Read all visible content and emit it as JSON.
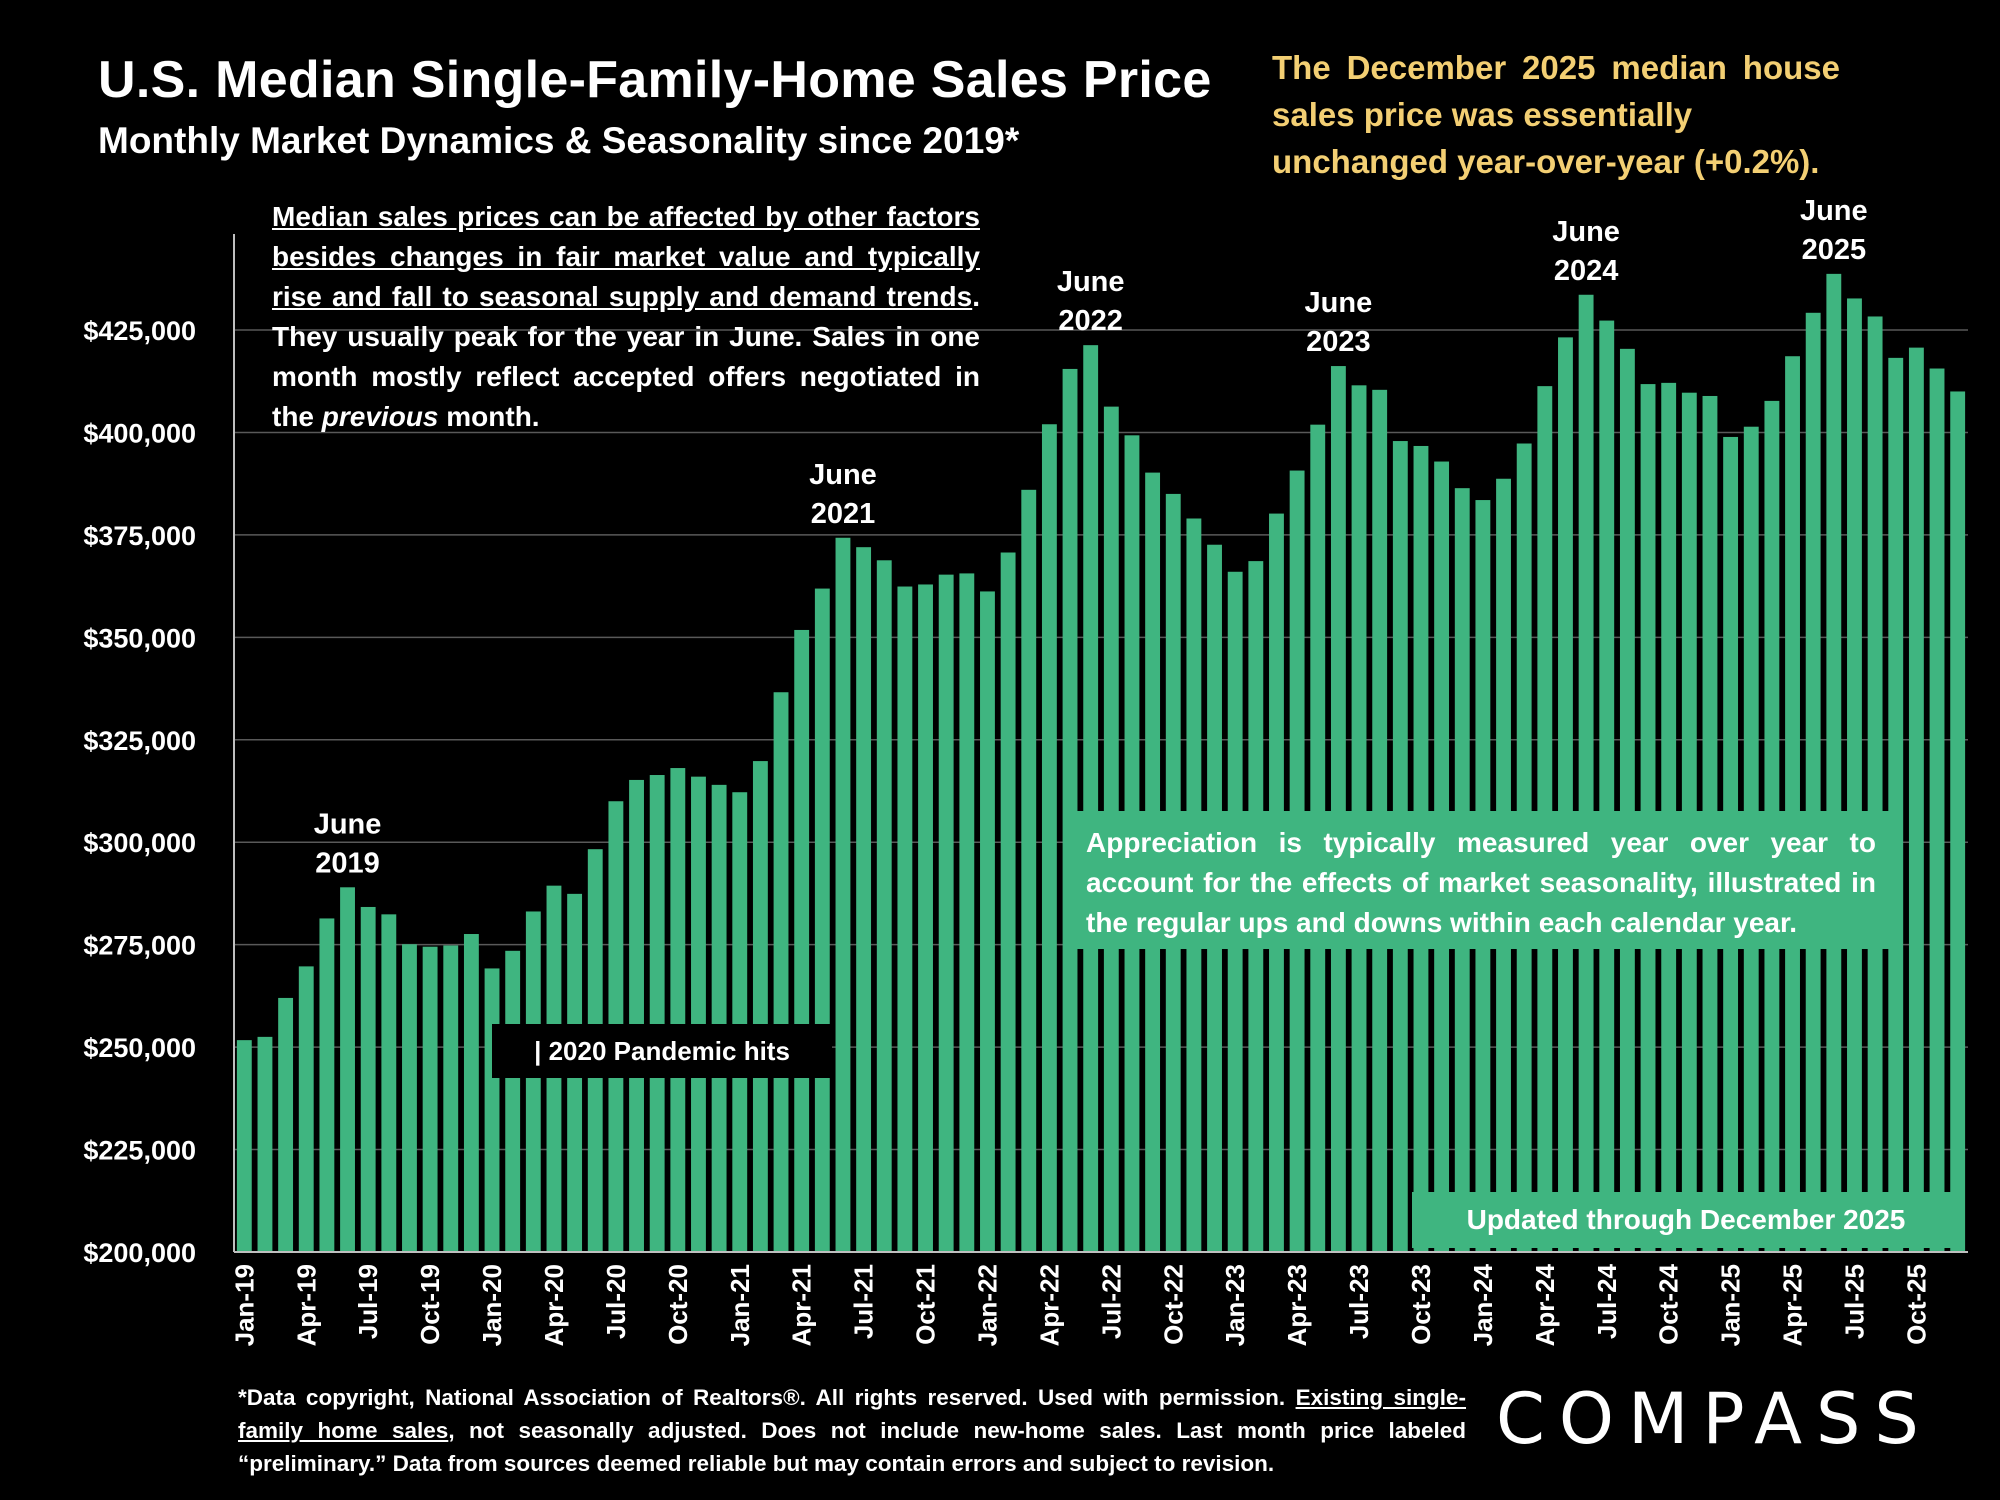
{
  "title": "U.S. Median Single-Family-Home Sales Price",
  "subtitle": "Monthly Market Dynamics & Seasonality since 2019*",
  "callout": {
    "line1": "The December  2025 median house sales price was essentially",
    "line2": "unchanged year-over-year (+0.2%)."
  },
  "note": {
    "underlined": "Median sales prices can be affected by other factors besides changes in fair market value and typically rise and fall to seasonal supply and demand trends",
    "after_underlined": ". They usually peak for the year in June. Sales in one month mostly reflect accepted offers negotiated in the ",
    "italic": "previous",
    "end": " month."
  },
  "appreciation_box": "Appreciation is typically measured year over year to account for the effects of market seasonality, illustrated in the regular ups and downs within each calendar year.",
  "updated_label": "Updated through December 2025",
  "pandemic_label": "| 2020 Pandemic hits",
  "footer": {
    "part1": "*Data copyright, National Association of Realtors®. All rights reserved. Used with permission. ",
    "link": "Existing single-family home sales",
    "part2": ", not seasonally adjusted. Does not include new-home sales. Last month price labeled “preliminary.” Data from sources deemed reliable but may contain errors and subject to revision."
  },
  "logo": "COMPASS",
  "colors": {
    "bar": "#3fb580",
    "callout": "#f3cf73",
    "background": "#000000"
  },
  "chart_data": {
    "type": "bar",
    "title": "U.S. Median Single-Family-Home Sales Price",
    "ylim": [
      200000,
      450000
    ],
    "yticks": [
      200000,
      225000,
      250000,
      275000,
      300000,
      325000,
      350000,
      375000,
      400000,
      425000
    ],
    "ytick_labels": [
      "$200,000",
      "$225,000",
      "$250,000",
      "$275,000",
      "$300,000",
      "$325,000",
      "$350,000",
      "$375,000",
      "$400,000",
      "$425,000"
    ],
    "grid": true,
    "xtick_labels": [
      {
        "index": 0,
        "label": "Jan-19"
      },
      {
        "index": 3,
        "label": "Apr-19"
      },
      {
        "index": 6,
        "label": "Jul-19"
      },
      {
        "index": 9,
        "label": "Oct-19"
      },
      {
        "index": 12,
        "label": "Jan-20"
      },
      {
        "index": 15,
        "label": "Apr-20"
      },
      {
        "index": 18,
        "label": "Jul-20"
      },
      {
        "index": 21,
        "label": "Oct-20"
      },
      {
        "index": 24,
        "label": "Jan-21"
      },
      {
        "index": 27,
        "label": "Apr-21"
      },
      {
        "index": 30,
        "label": "Jul-21"
      },
      {
        "index": 33,
        "label": "Oct-21"
      },
      {
        "index": 36,
        "label": "Jan-22"
      },
      {
        "index": 39,
        "label": "Apr-22"
      },
      {
        "index": 42,
        "label": "Jul-22"
      },
      {
        "index": 45,
        "label": "Oct-22"
      },
      {
        "index": 48,
        "label": "Jan-23"
      },
      {
        "index": 51,
        "label": "Apr-23"
      },
      {
        "index": 54,
        "label": "Jul-23"
      },
      {
        "index": 57,
        "label": "Oct-23"
      },
      {
        "index": 60,
        "label": "Jan-24"
      },
      {
        "index": 63,
        "label": "Apr-24"
      },
      {
        "index": 66,
        "label": "Jul-24"
      },
      {
        "index": 69,
        "label": "Oct-24"
      },
      {
        "index": 72,
        "label": "Jan-25"
      },
      {
        "index": 75,
        "label": "Apr-25"
      },
      {
        "index": 78,
        "label": "Jul-25"
      },
      {
        "index": 81,
        "label": "Oct-25"
      }
    ],
    "values": [
      251700,
      252500,
      262000,
      269700,
      281400,
      289000,
      284200,
      282400,
      275100,
      274500,
      274800,
      277600,
      269200,
      273500,
      283100,
      289400,
      287400,
      298300,
      310000,
      315200,
      316400,
      318100,
      316000,
      314000,
      312200,
      319800,
      336600,
      351800,
      361900,
      374300,
      372000,
      368800,
      362400,
      362900,
      365300,
      365600,
      361200,
      370700,
      386000,
      402000,
      415500,
      421300,
      406300,
      399300,
      390200,
      385000,
      379000,
      372600,
      366000,
      368600,
      380200,
      390700,
      401900,
      416200,
      411500,
      410400,
      397900,
      396700,
      392900,
      386400,
      383500,
      388700,
      397300,
      411300,
      423200,
      433600,
      427300,
      420400,
      411800,
      412100,
      409700,
      408900,
      398900,
      401400,
      407700,
      418600,
      429200,
      438700,
      432700,
      428300,
      418200,
      420700,
      415600,
      410000
    ],
    "annotations": [
      {
        "index": 5,
        "line1": "June",
        "line2": "2019"
      },
      {
        "index": 29,
        "line1": "June",
        "line2": "2021"
      },
      {
        "index": 41,
        "line1": "June",
        "line2": "2022"
      },
      {
        "index": 53,
        "line1": "June",
        "line2": "2023"
      },
      {
        "index": 65,
        "line1": "June",
        "line2": "2024"
      },
      {
        "index": 77,
        "line1": "June",
        "line2": "2025"
      }
    ]
  }
}
